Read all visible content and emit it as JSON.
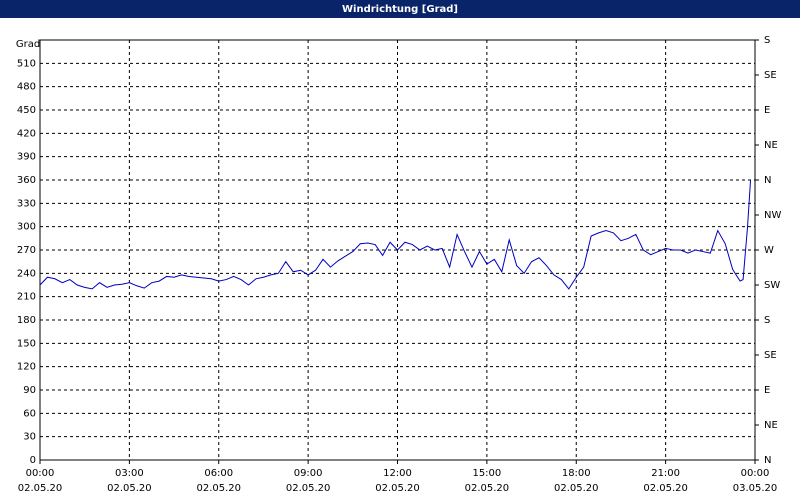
{
  "window_title": "Windrichtung [Grad]",
  "chart_data": {
    "type": "line",
    "ylabel": "Grad",
    "x": [
      0,
      0.25,
      0.5,
      0.75,
      1,
      1.25,
      1.5,
      1.75,
      2,
      2.25,
      2.5,
      2.75,
      3,
      3.25,
      3.5,
      3.75,
      4,
      4.25,
      4.5,
      4.75,
      5,
      5.25,
      5.5,
      5.75,
      6,
      6.25,
      6.5,
      6.75,
      7,
      7.25,
      7.5,
      7.75,
      8,
      8.25,
      8.5,
      8.75,
      9,
      9.25,
      9.5,
      9.75,
      10,
      10.25,
      10.5,
      10.75,
      11,
      11.25,
      11.5,
      11.75,
      12,
      12.25,
      12.5,
      12.75,
      13,
      13.25,
      13.5,
      13.75,
      14,
      14.25,
      14.5,
      14.75,
      15,
      15.25,
      15.5,
      15.75,
      16,
      16.25,
      16.5,
      16.75,
      17,
      17.25,
      17.5,
      17.75,
      18,
      18.25,
      18.5,
      18.75,
      19,
      19.25,
      19.5,
      19.75,
      20,
      20.25,
      20.5,
      20.75,
      21,
      21.25,
      21.5,
      21.75,
      22,
      22.25,
      22.5,
      22.75,
      23,
      23.25,
      23.5,
      23.6,
      23.75,
      23.85
    ],
    "series": [
      {
        "name": "Windrichtung",
        "color": "#0000c0",
        "values": [
          225,
          235,
          233,
          228,
          232,
          225,
          222,
          220,
          228,
          222,
          225,
          226,
          228,
          224,
          221,
          228,
          230,
          236,
          235,
          238,
          236,
          235,
          234,
          233,
          230,
          232,
          236,
          232,
          225,
          233,
          235,
          238,
          240,
          255,
          242,
          244,
          238,
          244,
          258,
          248,
          256,
          262,
          268,
          278,
          279,
          277,
          263,
          280,
          270,
          280,
          277,
          270,
          275,
          270,
          272,
          248,
          290,
          268,
          248,
          268,
          252,
          258,
          242,
          283,
          250,
          240,
          255,
          260,
          250,
          238,
          232,
          220,
          235,
          248,
          288,
          292,
          295,
          292,
          282,
          285,
          290,
          270,
          264,
          268,
          272,
          270,
          270,
          266,
          270,
          268,
          266,
          295,
          278,
          245,
          230,
          232,
          300,
          360
        ]
      }
    ],
    "xlim": [
      0,
      24
    ],
    "xticks": [
      {
        "value": 0,
        "label": "00:00"
      },
      {
        "value": 3,
        "label": "03:00"
      },
      {
        "value": 6,
        "label": "06:00"
      },
      {
        "value": 9,
        "label": "09:00"
      },
      {
        "value": 12,
        "label": "12:00"
      },
      {
        "value": 15,
        "label": "15:00"
      },
      {
        "value": 18,
        "label": "18:00"
      },
      {
        "value": 21,
        "label": "21:00"
      },
      {
        "value": 24,
        "label": "00:00"
      }
    ],
    "xtick_dates": [
      "02.05.20",
      "02.05.20",
      "02.05.20",
      "02.05.20",
      "02.05.20",
      "02.05.20",
      "02.05.20",
      "02.05.20",
      "03.05.20"
    ],
    "ylim": [
      0,
      540
    ],
    "yticks": [
      0,
      30,
      60,
      90,
      120,
      150,
      180,
      210,
      240,
      270,
      300,
      330,
      360,
      390,
      420,
      450,
      480,
      510
    ],
    "y2lim": [
      0,
      540
    ],
    "y2ticks": [
      {
        "value": 0,
        "label": "N"
      },
      {
        "value": 45,
        "label": "NE"
      },
      {
        "value": 90,
        "label": "E"
      },
      {
        "value": 135,
        "label": "SE"
      },
      {
        "value": 180,
        "label": "S"
      },
      {
        "value": 225,
        "label": "SW"
      },
      {
        "value": 270,
        "label": "W"
      },
      {
        "value": 315,
        "label": "NW"
      },
      {
        "value": 360,
        "label": "N"
      },
      {
        "value": 405,
        "label": "NE"
      },
      {
        "value": 450,
        "label": "E"
      },
      {
        "value": 495,
        "label": "SE"
      },
      {
        "value": 540,
        "label": "S"
      }
    ],
    "grid": true
  }
}
